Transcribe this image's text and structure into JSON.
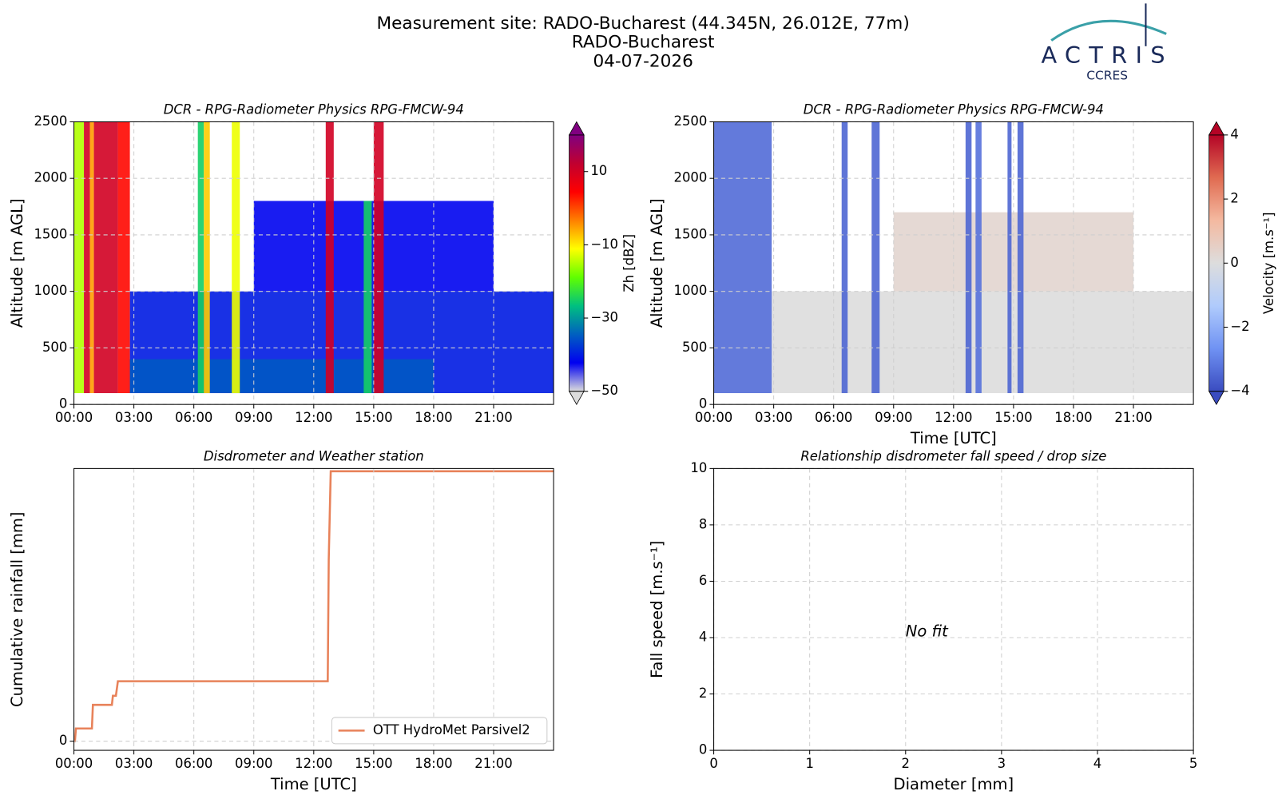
{
  "header": {
    "lines": [
      "Measurement site: RADO-Bucharest (44.345N, 26.012E, 77m)",
      "RADO-Bucharest",
      "04-07-2026"
    ],
    "logo": {
      "name": "ACTRIS",
      "sub": "CCRES"
    }
  },
  "chart_data": [
    {
      "type": "heatmap",
      "title": "DCR - RPG-Radiometer Physics RPG-FMCW-94",
      "ylabel": "Altitude [m AGL]",
      "xlim": [
        0,
        24
      ],
      "xticks": [
        {
          "value": 0,
          "label": "00:00"
        },
        {
          "value": 3,
          "label": "03:00"
        },
        {
          "value": 6,
          "label": "06:00"
        },
        {
          "value": 9,
          "label": "09:00"
        },
        {
          "value": 12,
          "label": "12:00"
        },
        {
          "value": 15,
          "label": "15:00"
        },
        {
          "value": 18,
          "label": "18:00"
        },
        {
          "value": 21,
          "label": "21:00"
        }
      ],
      "ylim": [
        0,
        2500
      ],
      "yticks": [
        0,
        500,
        1000,
        1500,
        2000,
        2500
      ],
      "grid": true,
      "cells": [
        {
          "x": [
            2.8,
            24
          ],
          "y": [
            100,
            1000
          ],
          "value": -40
        },
        {
          "x": [
            2.8,
            18
          ],
          "y": [
            100,
            400
          ],
          "value": -35
        },
        {
          "x": [
            9,
            21
          ],
          "y": [
            1000,
            1800
          ],
          "value": -42
        },
        {
          "x": [
            0,
            0.5
          ],
          "y": [
            100,
            2500
          ],
          "value": -15
        },
        {
          "x": [
            0.5,
            0.8
          ],
          "y": [
            100,
            2500
          ],
          "value": 10
        },
        {
          "x": [
            0.8,
            1.0
          ],
          "y": [
            100,
            2500
          ],
          "value": -5
        },
        {
          "x": [
            1.0,
            2.2
          ],
          "y": [
            100,
            2500
          ],
          "value": 10
        },
        {
          "x": [
            2.2,
            2.8
          ],
          "y": [
            100,
            2500
          ],
          "value": 4
        },
        {
          "x": [
            6.2,
            6.5
          ],
          "y": [
            100,
            2500
          ],
          "value": -25
        },
        {
          "x": [
            6.5,
            6.8
          ],
          "y": [
            100,
            2500
          ],
          "value": -8
        },
        {
          "x": [
            7.9,
            8.3
          ],
          "y": [
            100,
            2500
          ],
          "value": -12
        },
        {
          "x": [
            12.6,
            13.0
          ],
          "y": [
            100,
            2500
          ],
          "value": 10
        },
        {
          "x": [
            14.5,
            14.9
          ],
          "y": [
            100,
            1800
          ],
          "value": -25
        },
        {
          "x": [
            15.0,
            15.5
          ],
          "y": [
            100,
            2500
          ],
          "value": 10
        }
      ],
      "colorbar": {
        "label": "Zh [dBZ]",
        "lim": [
          -50,
          20
        ],
        "ticks": [
          {
            "value": -50,
            "label": "−50"
          },
          {
            "value": -30,
            "label": "−30"
          },
          {
            "value": -10,
            "label": "−10"
          },
          10
        ],
        "colormap": [
          "#dcdcdc",
          "#0000f0",
          "#0060c0",
          "#00c080",
          "#60ff00",
          "#ffff00",
          "#ff8000",
          "#ff0000",
          "#c00030",
          "#800080"
        ]
      }
    },
    {
      "type": "heatmap",
      "title": "DCR - RPG-Radiometer Physics RPG-FMCW-94",
      "ylabel": "Altitude [m AGL]",
      "xlabel": "Time [UTC]",
      "xlim": [
        0,
        24
      ],
      "xticks": [
        {
          "value": 0,
          "label": "00:00"
        },
        {
          "value": 3,
          "label": "03:00"
        },
        {
          "value": 6,
          "label": "06:00"
        },
        {
          "value": 9,
          "label": "09:00"
        },
        {
          "value": 12,
          "label": "12:00"
        },
        {
          "value": 15,
          "label": "15:00"
        },
        {
          "value": 18,
          "label": "18:00"
        },
        {
          "value": 21,
          "label": "21:00"
        }
      ],
      "ylim": [
        0,
        2500
      ],
      "yticks": [
        0,
        500,
        1000,
        1500,
        2000,
        2500
      ],
      "grid": true,
      "cells": [
        {
          "x": [
            2.9,
            24
          ],
          "y": [
            100,
            1000
          ],
          "value": 0
        },
        {
          "x": [
            9,
            21
          ],
          "y": [
            1000,
            1700
          ],
          "value": 0.3
        },
        {
          "x": [
            0,
            2.9
          ],
          "y": [
            100,
            2500
          ],
          "value": -3.4
        },
        {
          "x": [
            6.4,
            6.7
          ],
          "y": [
            100,
            2500
          ],
          "value": -3.5
        },
        {
          "x": [
            7.9,
            8.3
          ],
          "y": [
            100,
            2500
          ],
          "value": -3.5
        },
        {
          "x": [
            12.6,
            12.9
          ],
          "y": [
            100,
            2500
          ],
          "value": -3.5
        },
        {
          "x": [
            13.1,
            13.4
          ],
          "y": [
            100,
            2500
          ],
          "value": -3.3
        },
        {
          "x": [
            14.7,
            14.9
          ],
          "y": [
            100,
            2500
          ],
          "value": -3.5
        },
        {
          "x": [
            15.2,
            15.5
          ],
          "y": [
            100,
            2500
          ],
          "value": -3.5
        }
      ],
      "colorbar": {
        "label": "Velocity [m.s⁻¹]",
        "lim": [
          -4,
          4
        ],
        "ticks": [
          {
            "value": -4,
            "label": "−4"
          },
          {
            "value": -2,
            "label": "−2"
          },
          0,
          2,
          4
        ],
        "colormap": [
          "#3a4cc0",
          "#6f92f3",
          "#b0cbfc",
          "#dddddd",
          "#f4b9a0",
          "#e06b51",
          "#b40426"
        ]
      }
    },
    {
      "type": "line",
      "title": "Disdrometer and Weather station",
      "ylabel": "Cumulative rainfall [mm]",
      "xlabel": "Time [UTC]",
      "xlim": [
        0,
        24
      ],
      "xticks": [
        {
          "value": 0,
          "label": "00:00"
        },
        {
          "value": 3,
          "label": "03:00"
        },
        {
          "value": 6,
          "label": "06:00"
        },
        {
          "value": 9,
          "label": "09:00"
        },
        {
          "value": 12,
          "label": "12:00"
        },
        {
          "value": 15,
          "label": "15:00"
        },
        {
          "value": 18,
          "label": "18:00"
        },
        {
          "value": 21,
          "label": "21:00"
        }
      ],
      "ylim": [
        -0.5,
        15
      ],
      "yticks": [
        0
      ],
      "grid": true,
      "legend": "lower right",
      "series": [
        {
          "name": "OTT HydroMet Parsivel2",
          "color": "#e8825a",
          "x": [
            0,
            0.05,
            0.1,
            0.9,
            0.95,
            1.9,
            1.95,
            2.1,
            2.2,
            2.3,
            12.7,
            12.75,
            12.85,
            24
          ],
          "values": [
            0,
            0,
            0.7,
            0.7,
            2.0,
            2.0,
            2.5,
            2.5,
            3.3,
            3.3,
            3.3,
            10,
            14.85,
            14.85
          ]
        }
      ]
    },
    {
      "type": "scatter",
      "title": "Relationship disdrometer fall speed / drop size",
      "ylabel": "Fall speed [m.s⁻¹]",
      "xlabel": "Diameter [mm]",
      "xlim": [
        0,
        5
      ],
      "xticks": [
        0,
        1,
        2,
        3,
        4,
        5
      ],
      "ylim": [
        0,
        10
      ],
      "yticks": [
        0,
        2,
        4,
        6,
        8,
        10
      ],
      "grid": true,
      "annotation": {
        "text": "No fit",
        "x": 2,
        "y": 4.2
      },
      "series": []
    }
  ]
}
